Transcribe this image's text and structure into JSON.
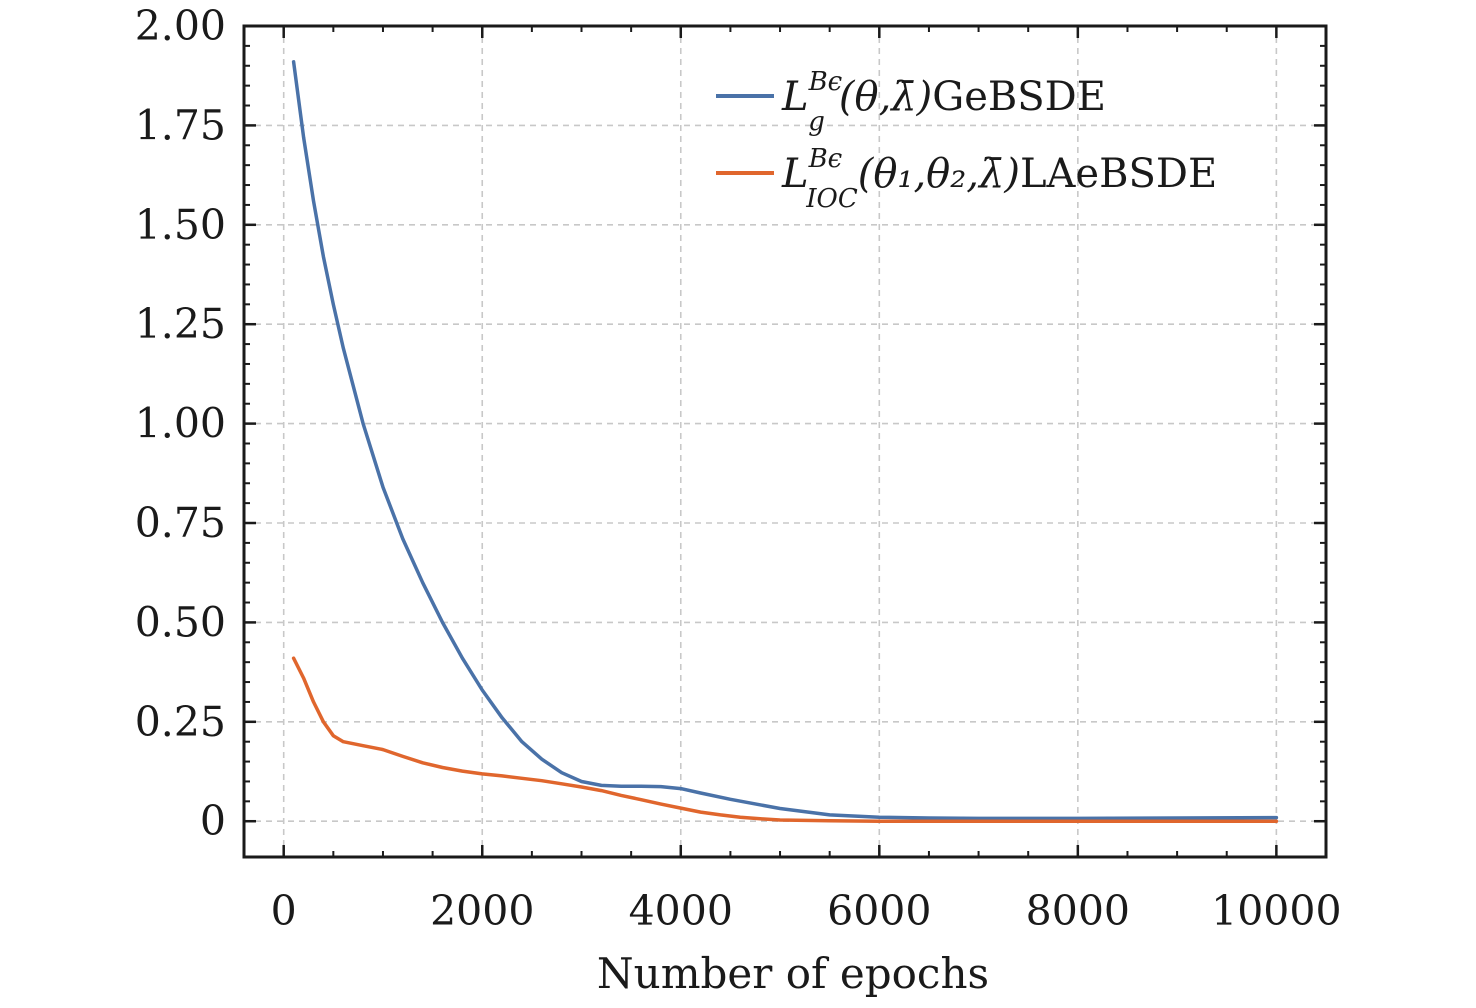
{
  "chart_data": {
    "type": "line",
    "title": "",
    "xlabel": "Number of epochs",
    "ylabel": "",
    "xlim": [
      -400,
      10500
    ],
    "ylim": [
      -0.09,
      2.0
    ],
    "x_ticks": [
      0,
      2000,
      4000,
      6000,
      8000,
      10000
    ],
    "x_tick_labels": [
      "0",
      "2000",
      "4000",
      "6000",
      "8000",
      "10000"
    ],
    "y_ticks": [
      0,
      0.25,
      0.5,
      0.75,
      1.0,
      1.25,
      1.5,
      1.75,
      2.0
    ],
    "y_tick_labels": [
      "0",
      "0.25",
      "0.50",
      "0.75",
      "1.00",
      "1.25",
      "1.50",
      "1.75",
      "2.00"
    ],
    "grid": true,
    "legend_position": "top-right",
    "series": [
      {
        "name": "L_g^{Bϵ}(θ,λ̄)GeBSDE",
        "legend": {
          "L": "L",
          "sup": "Bϵ",
          "sub": "g",
          "args": "(θ,λ̄)",
          "suffix": "GeBSDE"
        },
        "color": "#4a72a8",
        "x": [
          100,
          200,
          300,
          400,
          500,
          600,
          800,
          1000,
          1200,
          1400,
          1600,
          1800,
          2000,
          2200,
          2400,
          2600,
          2800,
          3000,
          3200,
          3400,
          3600,
          3800,
          4000,
          4200,
          4500,
          5000,
          5500,
          6000,
          6500,
          7000,
          8000,
          9000,
          10000
        ],
        "y": [
          1.91,
          1.72,
          1.56,
          1.42,
          1.3,
          1.19,
          1.0,
          0.84,
          0.71,
          0.6,
          0.5,
          0.41,
          0.33,
          0.26,
          0.2,
          0.156,
          0.122,
          0.1,
          0.09,
          0.088,
          0.088,
          0.087,
          0.082,
          0.071,
          0.055,
          0.032,
          0.016,
          0.01,
          0.008,
          0.007,
          0.007,
          0.008,
          0.009
        ]
      },
      {
        "name": "L_IOC^{Bϵ}(θ1,θ2,λ̄)LAeBSDE",
        "legend": {
          "L": "L",
          "sup": "Bϵ",
          "sub": "IOC",
          "args": "(θ₁,θ₂,λ̄)",
          "suffix": "LAeBSDE"
        },
        "color": "#e0662d",
        "x": [
          100,
          200,
          300,
          400,
          500,
          600,
          800,
          1000,
          1200,
          1400,
          1600,
          1800,
          2000,
          2200,
          2400,
          2600,
          2800,
          3000,
          3200,
          3400,
          3600,
          3800,
          4000,
          4200,
          4400,
          4600,
          4800,
          5000,
          5500,
          6000,
          7000,
          8000,
          9000,
          10000
        ],
        "y": [
          0.41,
          0.36,
          0.3,
          0.25,
          0.215,
          0.2,
          0.19,
          0.18,
          0.163,
          0.147,
          0.135,
          0.126,
          0.119,
          0.114,
          0.108,
          0.102,
          0.094,
          0.086,
          0.077,
          0.065,
          0.054,
          0.043,
          0.033,
          0.023,
          0.016,
          0.01,
          0.006,
          0.003,
          0.001,
          0.0,
          0.0,
          0.0,
          0.0,
          0.0
        ]
      }
    ]
  }
}
